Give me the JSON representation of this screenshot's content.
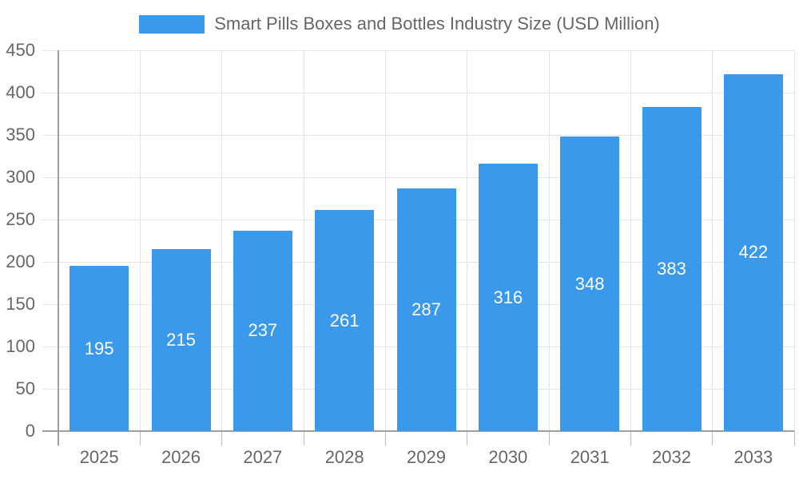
{
  "legend": {
    "title": "Smart Pills Boxes and Bottles Industry Size (USD Million)"
  },
  "colors": {
    "bar": "#3B99EC",
    "grid": "#E5E5E5",
    "axis": "#9E9E9E",
    "tick": "#BDBDBD",
    "text": "#666666",
    "bar_label": "#FFFFFF",
    "background": "#FFFFFF"
  },
  "chart_data": {
    "type": "bar",
    "title": "Smart Pills Boxes and Bottles Industry Size (USD Million)",
    "categories": [
      "2025",
      "2026",
      "2027",
      "2028",
      "2029",
      "2030",
      "2031",
      "2032",
      "2033"
    ],
    "values": [
      195,
      215,
      237,
      261,
      287,
      316,
      348,
      383,
      422
    ],
    "series": [
      {
        "name": "Smart Pills Boxes and Bottles Industry Size (USD Million)",
        "values": [
          195,
          215,
          237,
          261,
          287,
          316,
          348,
          383,
          422
        ]
      }
    ],
    "xlabel": "",
    "ylabel": "",
    "ylim": [
      0,
      450
    ],
    "ytick_step": 50,
    "ytick_labels": [
      "0",
      "50",
      "100",
      "150",
      "200",
      "250",
      "300",
      "350",
      "400",
      "450"
    ],
    "grid": true,
    "legend_position": "top",
    "bar_value_labels_visible": true
  }
}
